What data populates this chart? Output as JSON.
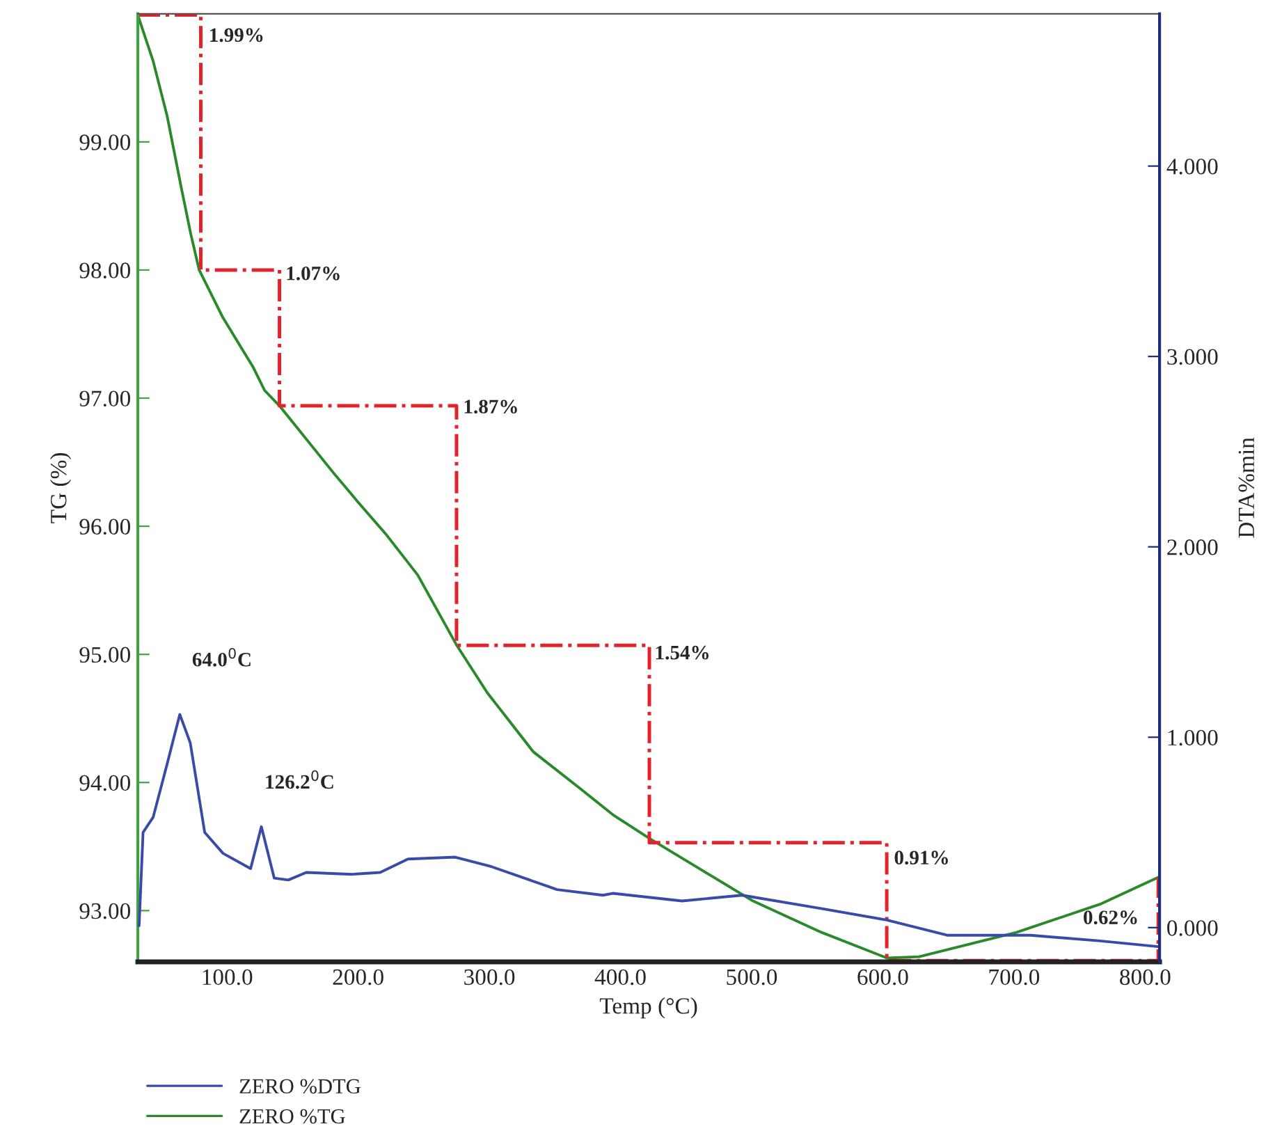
{
  "chart_data": {
    "type": "line",
    "xlabel": "Temp (°C)",
    "ylabel": "TG (%)",
    "y2label": "DTA%min",
    "xlim": [
      32,
      811
    ],
    "ylim": [
      92.6,
      100.0
    ],
    "y2lim": [
      -0.18,
      4.8
    ],
    "xticks": [
      {
        "value": 100,
        "label": "100.0"
      },
      {
        "value": 200,
        "label": "200.0"
      },
      {
        "value": 300,
        "label": "300.0"
      },
      {
        "value": 400,
        "label": "400.0"
      },
      {
        "value": 500,
        "label": "500.0"
      },
      {
        "value": 600,
        "label": "600.0"
      },
      {
        "value": 700,
        "label": "700.0"
      },
      {
        "value": 800,
        "label": "800.0"
      }
    ],
    "yticks": [
      {
        "value": 93,
        "label": "93.00"
      },
      {
        "value": 94,
        "label": "94.00"
      },
      {
        "value": 95,
        "label": "95.00"
      },
      {
        "value": 96,
        "label": "96.00"
      },
      {
        "value": 97,
        "label": "97.00"
      },
      {
        "value": 98,
        "label": "98.00"
      },
      {
        "value": 99,
        "label": "99.00"
      }
    ],
    "y2ticks": [
      {
        "value": 0,
        "label": "0.000"
      },
      {
        "value": 1,
        "label": "1.000"
      },
      {
        "value": 2,
        "label": "2.000"
      },
      {
        "value": 3,
        "label": "3.000"
      },
      {
        "value": 4,
        "label": "4.000"
      }
    ],
    "grid": false,
    "legend": "bottom left",
    "series": [
      {
        "name": "ZERO %DTG",
        "color": "#3a4aa8",
        "axis": "y2",
        "x": [
          33,
          36,
          43.7,
          54,
          64,
          72,
          83,
          97,
          118,
          126.2,
          136,
          146.7,
          160.5,
          195.5,
          216.8,
          238,
          274,
          301.7,
          351.6,
          386.6,
          394,
          447,
          492.8,
          553,
          603,
          649,
          712.5,
          765.6,
          810
        ],
        "values": [
          0.01,
          0.5,
          0.58,
          0.85,
          1.12,
          0.97,
          0.5,
          0.39,
          0.31,
          0.53,
          0.26,
          0.25,
          0.29,
          0.28,
          0.29,
          0.36,
          0.37,
          0.32,
          0.2,
          0.17,
          0.18,
          0.14,
          0.17,
          0.1,
          0.04,
          -0.04,
          -0.04,
          -0.07,
          -0.1
        ]
      },
      {
        "name": "ZERO %TG",
        "color": "#2a8a2a",
        "x": [
          32,
          43.7,
          54.4,
          65,
          72.4,
          78.8,
          96.8,
          120,
          128.7,
          140,
          181.7,
          199.8,
          221,
          245.4,
          275.2,
          298.5,
          333.5,
          369.6,
          394,
          422.7,
          500.2,
          553.3,
          603.2,
          627.6,
          701.9,
          765.6,
          810
        ],
        "values": [
          99.99,
          99.63,
          99.2,
          98.65,
          98.28,
          98.0,
          97.63,
          97.24,
          97.06,
          96.94,
          96.41,
          96.19,
          95.94,
          95.62,
          95.07,
          94.7,
          94.24,
          93.95,
          93.75,
          93.56,
          93.08,
          92.83,
          92.63,
          92.64,
          92.83,
          93.05,
          93.26
        ]
      },
      {
        "color": "#e3232b",
        "line_style": "dashdot",
        "x": [
          32,
          80,
          80,
          140,
          140,
          275,
          275,
          422,
          422,
          603,
          603,
          810,
          810
        ],
        "values": [
          99.99,
          99.99,
          98.0,
          98.0,
          96.94,
          96.94,
          95.07,
          95.07,
          93.53,
          93.53,
          92.61,
          92.61,
          93.26
        ]
      }
    ],
    "annotations": [
      {
        "text": "1.99%",
        "x": 86,
        "y": 99.82
      },
      {
        "text": "1.07%",
        "x": 144.6,
        "y": 97.96
      },
      {
        "text": "1.87%",
        "x": 280,
        "y": 96.92
      },
      {
        "text": "1.54%",
        "x": 426,
        "y": 95.0
      },
      {
        "text": "0.91%",
        "x": 608.5,
        "y": 93.4
      },
      "0.62%",
      "64.0$^{0}$C",
      "126.2$^{0}$C"
    ]
  }
}
